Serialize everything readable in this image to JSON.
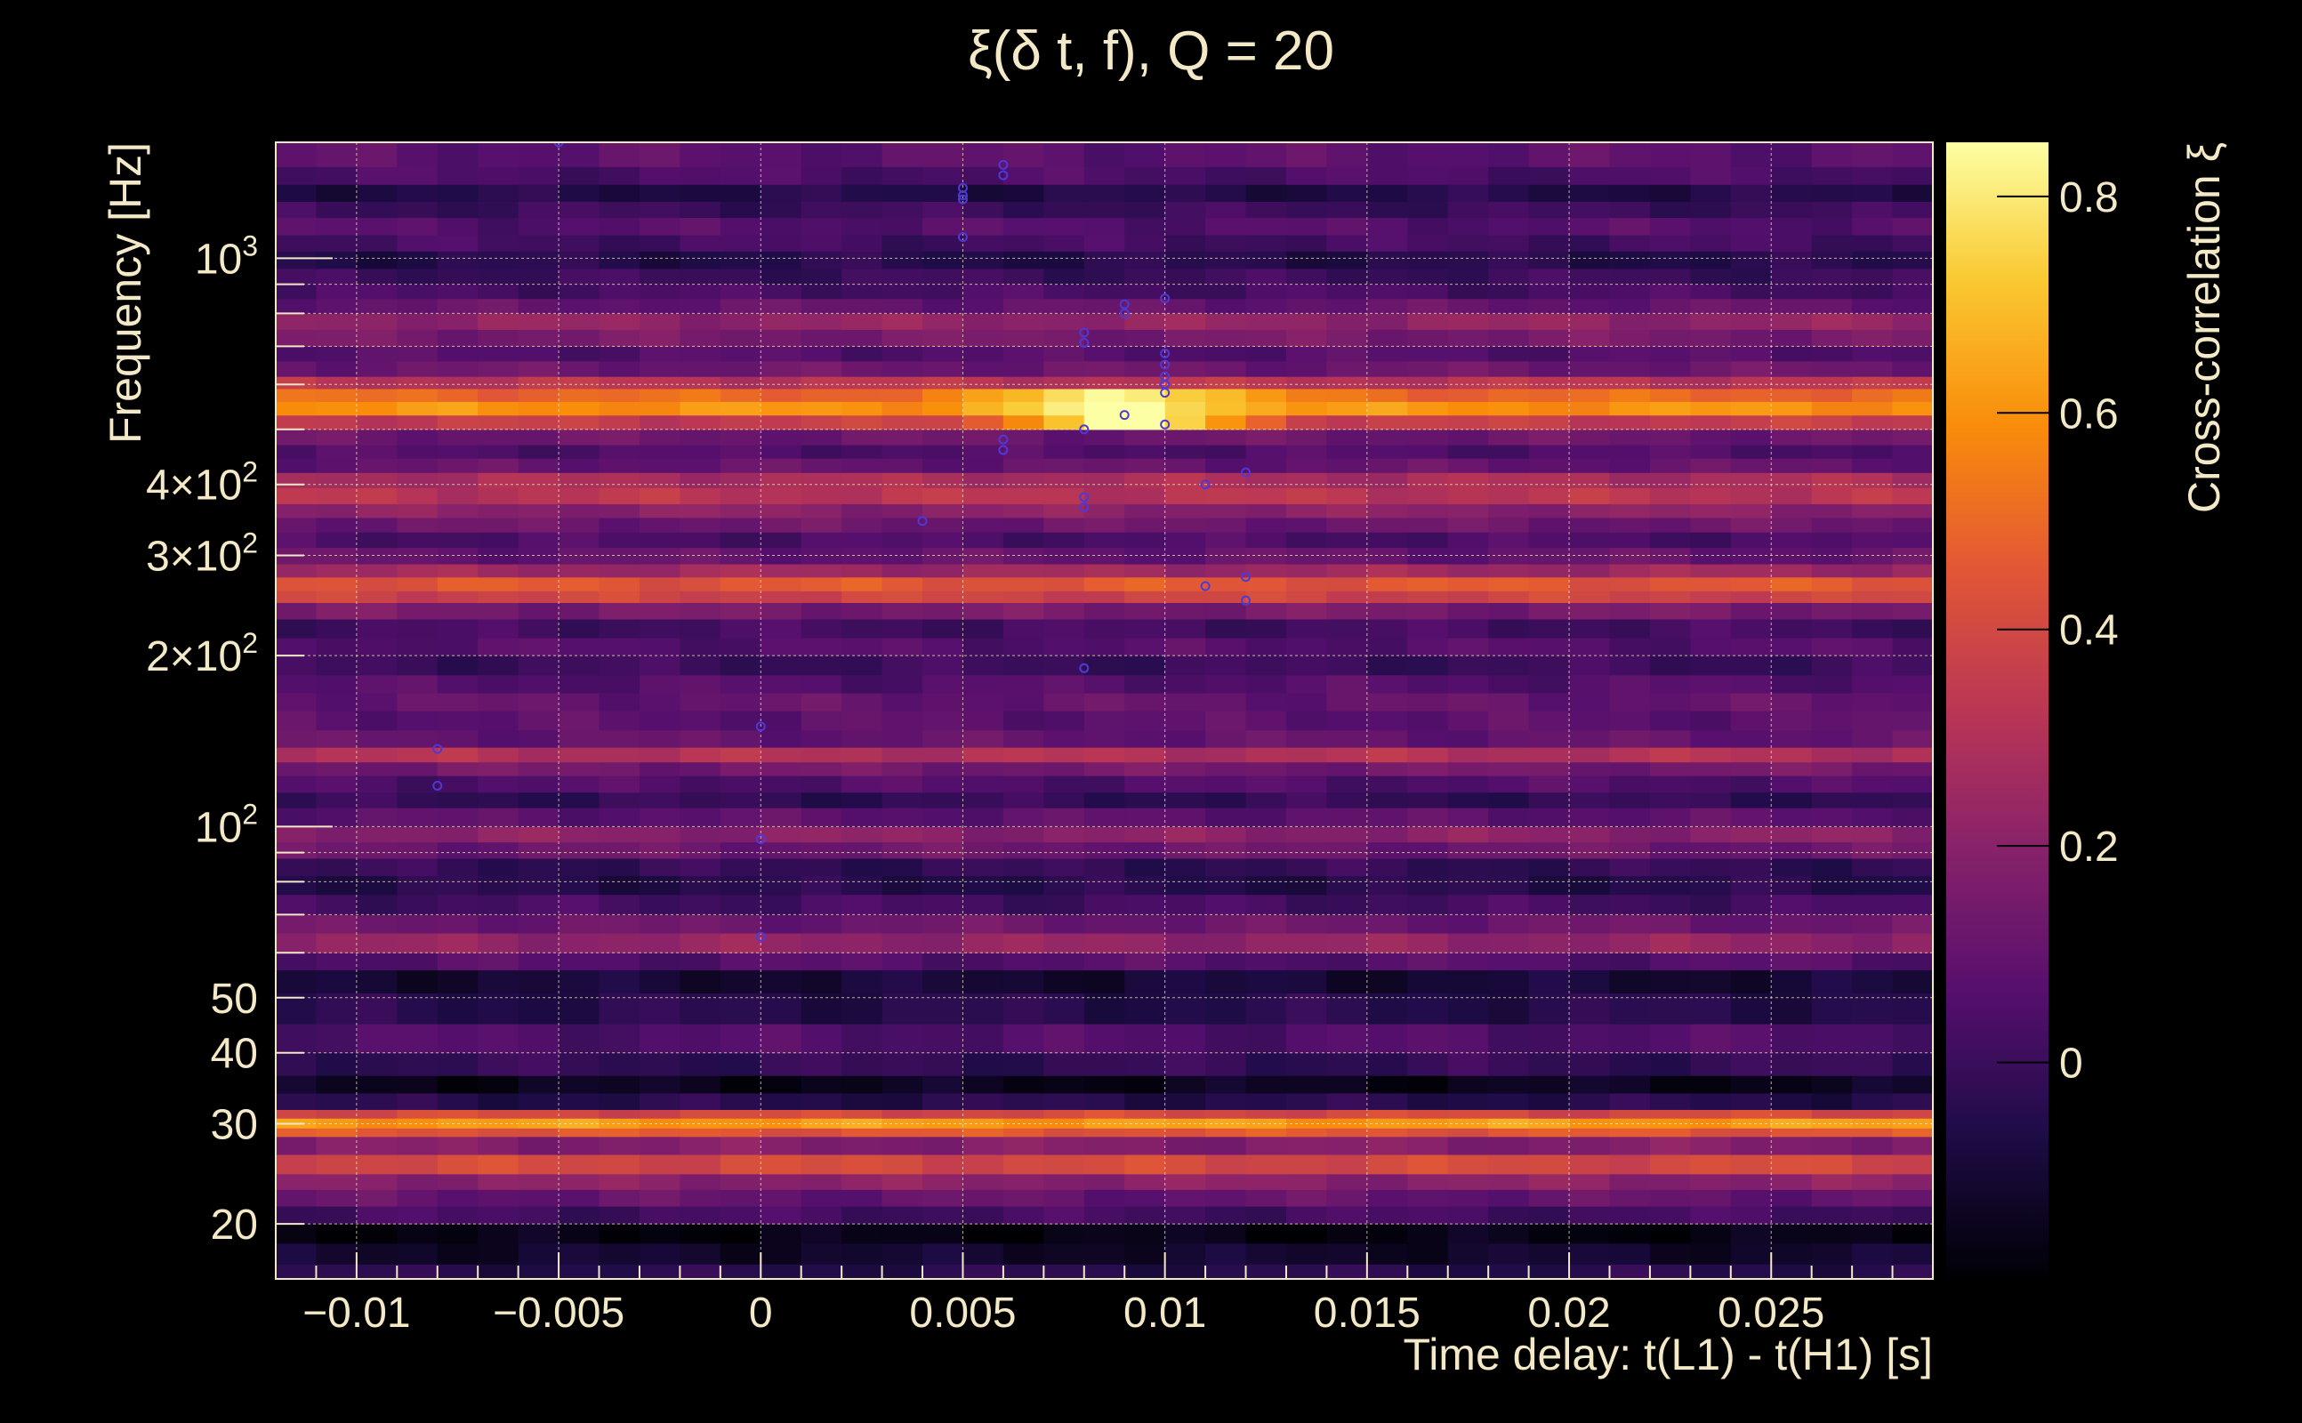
{
  "chart_data": {
    "type": "heatmap",
    "title": "ξ(δ t, f), Q = 20",
    "xlabel": "Time delay: t(L1) - t(H1) [s]",
    "ylabel": "Frequency [Hz]",
    "colorbar_label": "Cross-correlation ξ",
    "xlim": [
      -0.012,
      0.029
    ],
    "ylim": [
      16,
      1600
    ],
    "y_scale": "log",
    "grid": true,
    "colormap": "inferno",
    "colorbar_range": [
      -0.2,
      0.85
    ],
    "x_ticks": [
      {
        "v": -0.01,
        "label": "−0.01"
      },
      {
        "v": -0.005,
        "label": "−0.005"
      },
      {
        "v": 0,
        "label": "0"
      },
      {
        "v": 0.005,
        "label": "0.005"
      },
      {
        "v": 0.01,
        "label": "0.01"
      },
      {
        "v": 0.015,
        "label": "0.015"
      },
      {
        "v": 0.02,
        "label": "0.02"
      },
      {
        "v": 0.025,
        "label": "0.025"
      }
    ],
    "y_ticks": [
      {
        "v": 1000,
        "base": "10",
        "exp": "3"
      },
      {
        "v": 400,
        "base": "4×10",
        "exp": "2"
      },
      {
        "v": 300,
        "base": "3×10",
        "exp": "2"
      },
      {
        "v": 200,
        "base": "2×10",
        "exp": "2"
      },
      {
        "v": 100,
        "base": "10",
        "exp": "2"
      },
      {
        "v": 50,
        "base": "50",
        "exp": ""
      },
      {
        "v": 40,
        "base": "40",
        "exp": ""
      },
      {
        "v": 30,
        "base": "30",
        "exp": ""
      },
      {
        "v": 20,
        "base": "20",
        "exp": ""
      }
    ],
    "colorbar_ticks": [
      {
        "v": 0,
        "label": "0"
      },
      {
        "v": 0.2,
        "label": "0.2"
      },
      {
        "v": 0.4,
        "label": "0.4"
      },
      {
        "v": 0.6,
        "label": "0.6"
      },
      {
        "v": 0.8,
        "label": "0.8"
      }
    ],
    "frequency_bands": [
      {
        "f_min": 16,
        "f_max": 17,
        "value": -0.05
      },
      {
        "f_min": 17,
        "f_max": 18.5,
        "value": -0.12
      },
      {
        "f_min": 18.5,
        "f_max": 20,
        "value": -0.17
      },
      {
        "f_min": 20,
        "f_max": 21.5,
        "value": 0.02
      },
      {
        "f_min": 21.5,
        "f_max": 23,
        "value": 0.1
      },
      {
        "f_min": 23,
        "f_max": 24.5,
        "value": 0.2
      },
      {
        "f_min": 24.5,
        "f_max": 26.5,
        "value": 0.4
      },
      {
        "f_min": 26.5,
        "f_max": 28.5,
        "value": 0.18
      },
      {
        "f_min": 28.5,
        "f_max": 29.5,
        "value": 0.45
      },
      {
        "f_min": 29.5,
        "f_max": 30.7,
        "value": 0.62
      },
      {
        "f_min": 30.7,
        "f_max": 31.8,
        "value": 0.4
      },
      {
        "f_min": 31.8,
        "f_max": 34,
        "value": -0.05
      },
      {
        "f_min": 34,
        "f_max": 36.5,
        "value": -0.15
      },
      {
        "f_min": 36.5,
        "f_max": 40,
        "value": -0.02
      },
      {
        "f_min": 40,
        "f_max": 45,
        "value": 0.05
      },
      {
        "f_min": 45,
        "f_max": 51,
        "value": -0.05
      },
      {
        "f_min": 51,
        "f_max": 56,
        "value": -0.1
      },
      {
        "f_min": 56,
        "f_max": 60,
        "value": 0.06
      },
      {
        "f_min": 60,
        "f_max": 65,
        "value": 0.22
      },
      {
        "f_min": 65,
        "f_max": 70,
        "value": 0.12
      },
      {
        "f_min": 70,
        "f_max": 76,
        "value": 0.02
      },
      {
        "f_min": 76,
        "f_max": 82,
        "value": -0.05
      },
      {
        "f_min": 82,
        "f_max": 88,
        "value": -0.02
      },
      {
        "f_min": 88,
        "f_max": 94,
        "value": 0.12
      },
      {
        "f_min": 94,
        "f_max": 100,
        "value": 0.2
      },
      {
        "f_min": 100,
        "f_max": 108,
        "value": 0.08
      },
      {
        "f_min": 108,
        "f_max": 115,
        "value": -0.02
      },
      {
        "f_min": 115,
        "f_max": 123,
        "value": 0.05
      },
      {
        "f_min": 123,
        "f_max": 130,
        "value": 0.14
      },
      {
        "f_min": 130,
        "f_max": 138,
        "value": 0.3
      },
      {
        "f_min": 138,
        "f_max": 148,
        "value": 0.1
      },
      {
        "f_min": 148,
        "f_max": 160,
        "value": 0.08
      },
      {
        "f_min": 160,
        "f_max": 172,
        "value": 0.1
      },
      {
        "f_min": 172,
        "f_max": 185,
        "value": 0.06
      },
      {
        "f_min": 185,
        "f_max": 200,
        "value": 0.0
      },
      {
        "f_min": 200,
        "f_max": 215,
        "value": 0.06
      },
      {
        "f_min": 215,
        "f_max": 232,
        "value": 0.02
      },
      {
        "f_min": 232,
        "f_max": 248,
        "value": 0.15
      },
      {
        "f_min": 248,
        "f_max": 260,
        "value": 0.38
      },
      {
        "f_min": 260,
        "f_max": 275,
        "value": 0.45
      },
      {
        "f_min": 275,
        "f_max": 290,
        "value": 0.25
      },
      {
        "f_min": 290,
        "f_max": 310,
        "value": 0.1
      },
      {
        "f_min": 310,
        "f_max": 330,
        "value": 0.04
      },
      {
        "f_min": 330,
        "f_max": 350,
        "value": 0.12
      },
      {
        "f_min": 350,
        "f_max": 370,
        "value": 0.2
      },
      {
        "f_min": 370,
        "f_max": 395,
        "value": 0.32
      },
      {
        "f_min": 395,
        "f_max": 420,
        "value": 0.28
      },
      {
        "f_min": 420,
        "f_max": 445,
        "value": 0.1
      },
      {
        "f_min": 445,
        "f_max": 470,
        "value": 0.05
      },
      {
        "f_min": 470,
        "f_max": 500,
        "value": 0.12
      },
      {
        "f_min": 500,
        "f_max": 530,
        "value": 0.35
      },
      {
        "f_min": 530,
        "f_max": 560,
        "value": 0.6
      },
      {
        "f_min": 560,
        "f_max": 590,
        "value": 0.5
      },
      {
        "f_min": 590,
        "f_max": 620,
        "value": 0.32
      },
      {
        "f_min": 620,
        "f_max": 660,
        "value": 0.12
      },
      {
        "f_min": 660,
        "f_max": 700,
        "value": 0.06
      },
      {
        "f_min": 700,
        "f_max": 750,
        "value": 0.15
      },
      {
        "f_min": 750,
        "f_max": 800,
        "value": 0.22
      },
      {
        "f_min": 800,
        "f_max": 850,
        "value": 0.1
      },
      {
        "f_min": 850,
        "f_max": 900,
        "value": 0.03
      },
      {
        "f_min": 900,
        "f_max": 960,
        "value": 0.0
      },
      {
        "f_min": 960,
        "f_max": 1030,
        "value": -0.05
      },
      {
        "f_min": 1030,
        "f_max": 1100,
        "value": 0.02
      },
      {
        "f_min": 1100,
        "f_max": 1180,
        "value": 0.06
      },
      {
        "f_min": 1180,
        "f_max": 1260,
        "value": 0.0
      },
      {
        "f_min": 1260,
        "f_max": 1350,
        "value": -0.06
      },
      {
        "f_min": 1350,
        "f_max": 1450,
        "value": 0.04
      },
      {
        "f_min": 1450,
        "f_max": 1600,
        "value": 0.08
      }
    ],
    "peak": {
      "t": 0.009,
      "f": 560,
      "value": 0.85,
      "t_width": 0.003
    },
    "local_maxima": [
      {
        "t": -0.008,
        "f": 137
      },
      {
        "t": -0.008,
        "f": 118
      },
      {
        "t": -0.005,
        "f": 1600
      },
      {
        "t": 0,
        "f": 150
      },
      {
        "t": 0,
        "f": 95
      },
      {
        "t": 0,
        "f": 64
      },
      {
        "t": 0.004,
        "f": 345
      },
      {
        "t": 0.005,
        "f": 1330
      },
      {
        "t": 0.005,
        "f": 1290
      },
      {
        "t": 0.005,
        "f": 1270
      },
      {
        "t": 0.005,
        "f": 1090
      },
      {
        "t": 0.006,
        "f": 1460
      },
      {
        "t": 0.006,
        "f": 1400
      },
      {
        "t": 0.006,
        "f": 480
      },
      {
        "t": 0.006,
        "f": 460
      },
      {
        "t": 0.008,
        "f": 740
      },
      {
        "t": 0.008,
        "f": 710
      },
      {
        "t": 0.008,
        "f": 500
      },
      {
        "t": 0.008,
        "f": 380
      },
      {
        "t": 0.008,
        "f": 365
      },
      {
        "t": 0.008,
        "f": 190
      },
      {
        "t": 0.009,
        "f": 830
      },
      {
        "t": 0.009,
        "f": 800
      },
      {
        "t": 0.009,
        "f": 530
      },
      {
        "t": 0.01,
        "f": 850
      },
      {
        "t": 0.01,
        "f": 680
      },
      {
        "t": 0.01,
        "f": 650
      },
      {
        "t": 0.01,
        "f": 620
      },
      {
        "t": 0.01,
        "f": 600
      },
      {
        "t": 0.01,
        "f": 580
      },
      {
        "t": 0.01,
        "f": 510
      },
      {
        "t": 0.011,
        "f": 400
      },
      {
        "t": 0.011,
        "f": 265
      },
      {
        "t": 0.012,
        "f": 420
      },
      {
        "t": 0.012,
        "f": 275
      },
      {
        "t": 0.012,
        "f": 250
      }
    ]
  }
}
